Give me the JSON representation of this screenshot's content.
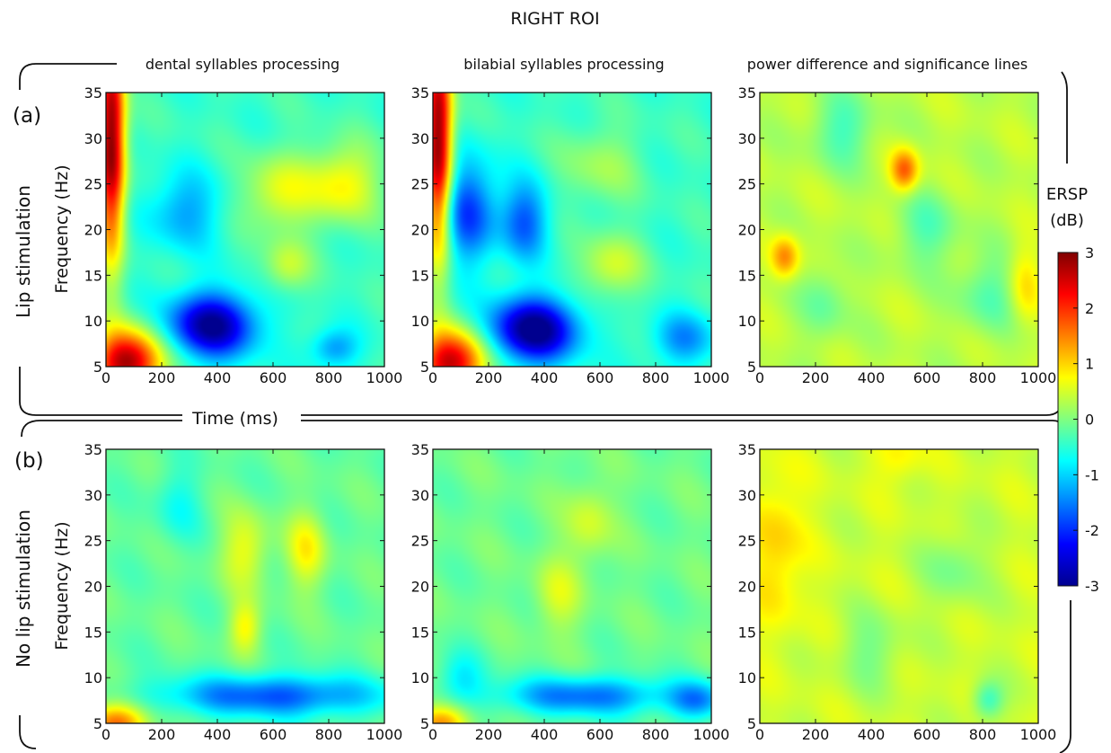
{
  "figure": {
    "title": "RIGHT ROI",
    "column_titles": [
      "dental syllables processing",
      "bilabial syllables processing",
      "power difference and significance lines"
    ],
    "row_tags": [
      "(a)",
      "(b)"
    ],
    "row_labels": [
      "Lip stimulation",
      "No lip stimulation"
    ],
    "ylabel": "Frequency (Hz)",
    "xlabel": "Time (ms)",
    "colorbar": {
      "title_line1": "ERSP",
      "title_line2": "(dB)",
      "ticks": [
        "3",
        "2",
        "1",
        "0",
        "-1",
        "-2",
        "-3"
      ],
      "colors": [
        "#00008f",
        "#0000ff",
        "#0080ff",
        "#00ffff",
        "#80ff80",
        "#ffff00",
        "#ff8000",
        "#ff0000",
        "#800000"
      ]
    }
  },
  "chart_data": [
    {
      "type": "heatmap",
      "panel": "a-dental",
      "row_label": "Lip stimulation",
      "title": "dental syllables processing",
      "xlabel": "",
      "ylabel": "Frequency (Hz)",
      "xlim": [
        0,
        1000
      ],
      "ylim": [
        5,
        35
      ],
      "xticks": [
        "0",
        "200",
        "400",
        "600",
        "800",
        "1000"
      ],
      "yticks": [
        "5",
        "10",
        "15",
        "20",
        "25",
        "30",
        "35"
      ],
      "zlim": [
        -3,
        3
      ],
      "baseline": -0.4,
      "blobs": [
        {
          "t": 20,
          "f": 30,
          "st": 35,
          "sf": 9,
          "a": 3.4
        },
        {
          "t": 80,
          "f": 5.5,
          "st": 90,
          "sf": 2.5,
          "a": 3.2
        },
        {
          "t": 380,
          "f": 9.5,
          "st": 110,
          "sf": 2.5,
          "a": -2.6
        },
        {
          "t": 280,
          "f": 22,
          "st": 90,
          "sf": 3,
          "a": -0.9
        },
        {
          "t": 850,
          "f": 25,
          "st": 90,
          "sf": 3,
          "a": 1.2
        },
        {
          "t": 620,
          "f": 24,
          "st": 90,
          "sf": 3,
          "a": 1.0
        },
        {
          "t": 650,
          "f": 16,
          "st": 60,
          "sf": 2,
          "a": 0.8
        },
        {
          "t": 820,
          "f": 7,
          "st": 60,
          "sf": 1.5,
          "a": -1.0
        }
      ]
    },
    {
      "type": "heatmap",
      "panel": "a-bilabial",
      "row_label": "Lip stimulation",
      "title": "bilabial syllables processing",
      "xlabel": "",
      "ylabel": "",
      "xlim": [
        0,
        1000
      ],
      "ylim": [
        5,
        35
      ],
      "xticks": [
        "0",
        "200",
        "400",
        "600",
        "800",
        "1000"
      ],
      "yticks": [
        "5",
        "10",
        "15",
        "20",
        "25",
        "30",
        "35"
      ],
      "zlim": [
        -3,
        3
      ],
      "baseline": -0.4,
      "blobs": [
        {
          "t": 20,
          "f": 30,
          "st": 35,
          "sf": 9,
          "a": 3.4
        },
        {
          "t": 70,
          "f": 5.5,
          "st": 90,
          "sf": 2.5,
          "a": 3.0
        },
        {
          "t": 360,
          "f": 9,
          "st": 110,
          "sf": 2.5,
          "a": -2.8
        },
        {
          "t": 130,
          "f": 22,
          "st": 70,
          "sf": 4,
          "a": -1.5
        },
        {
          "t": 330,
          "f": 21,
          "st": 60,
          "sf": 3,
          "a": -1.3
        },
        {
          "t": 640,
          "f": 16,
          "st": 80,
          "sf": 2.5,
          "a": 0.9
        },
        {
          "t": 600,
          "f": 27,
          "st": 100,
          "sf": 3,
          "a": 0.6
        },
        {
          "t": 900,
          "f": 8,
          "st": 80,
          "sf": 2,
          "a": -1.0
        }
      ]
    },
    {
      "type": "heatmap",
      "panel": "a-difference",
      "row_label": "Lip stimulation",
      "title": "power difference and significance lines",
      "xlabel": "",
      "ylabel": "",
      "xlim": [
        0,
        1000
      ],
      "ylim": [
        5,
        35
      ],
      "xticks": [
        "0",
        "200",
        "400",
        "600",
        "800",
        "1000"
      ],
      "yticks": [
        "5",
        "10",
        "15",
        "20",
        "25",
        "30",
        "35"
      ],
      "zlim": [
        -3,
        3
      ],
      "baseline": 0.35,
      "blobs": [
        {
          "t": 520,
          "f": 26.5,
          "st": 35,
          "sf": 1.6,
          "a": 1.4
        },
        {
          "t": 90,
          "f": 17,
          "st": 35,
          "sf": 1.6,
          "a": 1.1
        },
        {
          "t": 300,
          "f": 31,
          "st": 80,
          "sf": 3,
          "a": -0.7
        },
        {
          "t": 600,
          "f": 20,
          "st": 80,
          "sf": 3,
          "a": -0.6
        },
        {
          "t": 820,
          "f": 13,
          "st": 80,
          "sf": 3,
          "a": -0.6
        },
        {
          "t": 230,
          "f": 12,
          "st": 60,
          "sf": 3,
          "a": -0.5
        },
        {
          "t": 950,
          "f": 14,
          "st": 40,
          "sf": 3,
          "a": 0.6
        }
      ]
    },
    {
      "type": "heatmap",
      "panel": "b-dental",
      "row_label": "No lip stimulation",
      "title": "",
      "xlabel": "",
      "ylabel": "Frequency (Hz)",
      "xlim": [
        0,
        1000
      ],
      "ylim": [
        5,
        35
      ],
      "xticks": [
        "0",
        "200",
        "400",
        "600",
        "800",
        "1000"
      ],
      "yticks": [
        "5",
        "10",
        "15",
        "20",
        "25",
        "30",
        "35"
      ],
      "zlim": [
        -3,
        3
      ],
      "baseline": -0.15,
      "blobs": [
        {
          "t": 40,
          "f": 5,
          "st": 80,
          "sf": 1.5,
          "a": 1.8
        },
        {
          "t": 600,
          "f": 8,
          "st": 280,
          "sf": 1.6,
          "a": -1.6
        },
        {
          "t": 500,
          "f": 24,
          "st": 60,
          "sf": 3,
          "a": 0.8
        },
        {
          "t": 720,
          "f": 24,
          "st": 50,
          "sf": 3,
          "a": 0.9
        },
        {
          "t": 500,
          "f": 15.5,
          "st": 40,
          "sf": 2,
          "a": 0.9
        },
        {
          "t": 260,
          "f": 29,
          "st": 60,
          "sf": 3,
          "a": -0.5
        }
      ]
    },
    {
      "type": "heatmap",
      "panel": "b-bilabial",
      "row_label": "No lip stimulation",
      "title": "",
      "xlabel": "",
      "ylabel": "",
      "xlim": [
        0,
        1000
      ],
      "ylim": [
        5,
        35
      ],
      "xticks": [
        "0",
        "200",
        "400",
        "600",
        "800",
        "1000"
      ],
      "yticks": [
        "5",
        "10",
        "15",
        "20",
        "25",
        "30",
        "35"
      ],
      "zlim": [
        -3,
        3
      ],
      "baseline": -0.1,
      "blobs": [
        {
          "t": 30,
          "f": 5,
          "st": 70,
          "sf": 1.4,
          "a": 1.5
        },
        {
          "t": 550,
          "f": 8,
          "st": 220,
          "sf": 1.5,
          "a": -1.5
        },
        {
          "t": 950,
          "f": 7.5,
          "st": 70,
          "sf": 1.5,
          "a": -1.2
        },
        {
          "t": 100,
          "f": 10,
          "st": 60,
          "sf": 2,
          "a": -0.7
        },
        {
          "t": 450,
          "f": 19,
          "st": 60,
          "sf": 3,
          "a": 0.6
        },
        {
          "t": 560,
          "f": 27,
          "st": 60,
          "sf": 3,
          "a": 0.6
        }
      ]
    },
    {
      "type": "heatmap",
      "panel": "b-difference",
      "row_label": "No lip stimulation",
      "title": "",
      "xlabel": "",
      "ylabel": "",
      "xlim": [
        0,
        1000
      ],
      "ylim": [
        5,
        35
      ],
      "xticks": [
        "0",
        "200",
        "400",
        "600",
        "800",
        "1000"
      ],
      "yticks": [
        "5",
        "10",
        "15",
        "20",
        "25",
        "30",
        "35"
      ],
      "zlim": [
        -3,
        3
      ],
      "baseline": 0.45,
      "blobs": [
        {
          "t": 60,
          "f": 24,
          "st": 70,
          "sf": 6,
          "a": 0.6
        },
        {
          "t": 820,
          "f": 7.5,
          "st": 40,
          "sf": 1.5,
          "a": -0.9
        },
        {
          "t": 400,
          "f": 13,
          "st": 80,
          "sf": 3,
          "a": -0.5
        },
        {
          "t": 700,
          "f": 22,
          "st": 80,
          "sf": 3,
          "a": -0.5
        },
        {
          "t": 500,
          "f": 34,
          "st": 60,
          "sf": 2,
          "a": 0.4
        }
      ]
    }
  ]
}
